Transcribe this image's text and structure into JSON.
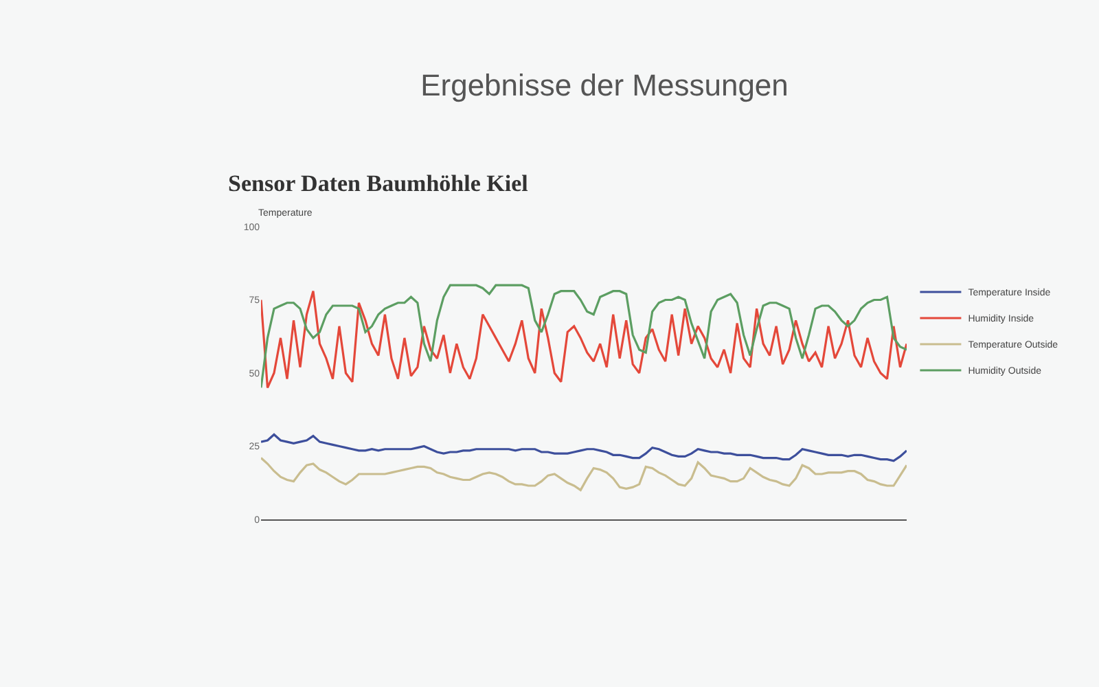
{
  "chart_data": {
    "type": "line",
    "title": "Ergebnisse der Messungen",
    "subtitle": "Sensor Daten Baumhöhle Kiel",
    "ylabel": "Temperature",
    "categories": [
      null,
      null,
      null,
      null,
      null,
      null,
      null,
      null,
      null,
      null,
      null,
      null,
      null,
      null,
      null,
      null,
      null,
      null,
      null,
      null,
      null,
      null,
      null,
      null,
      null,
      null,
      null,
      null,
      null,
      null,
      null,
      null,
      null,
      null,
      null,
      null,
      null,
      null,
      null,
      null,
      null,
      null,
      null,
      null,
      null,
      null,
      null,
      null,
      null,
      null,
      null,
      null,
      null,
      null,
      null,
      null,
      null,
      null,
      null,
      null,
      null,
      null,
      null,
      null,
      null,
      null,
      null,
      null,
      null,
      null,
      null,
      null,
      null,
      null,
      null,
      null,
      null,
      null,
      null,
      null,
      null,
      null,
      null,
      null,
      null,
      null,
      null,
      null,
      null,
      null,
      null,
      null,
      null,
      null,
      null,
      null,
      null,
      null,
      null,
      null
    ],
    "series": [
      {
        "name": "Temperature Inside",
        "color": "#3d4f9c",
        "values": [
          26.5,
          27,
          29,
          27,
          26.5,
          26,
          26.5,
          27,
          28.5,
          26.5,
          26,
          25.5,
          25,
          24.5,
          24,
          23.5,
          23.5,
          24,
          23.5,
          24,
          24,
          24,
          24,
          24,
          24.5,
          25,
          24,
          23,
          22.5,
          23,
          23,
          23.5,
          23.5,
          24,
          24,
          24,
          24,
          24,
          24,
          23.5,
          24,
          24,
          24,
          23,
          23,
          22.5,
          22.5,
          22.5,
          23,
          23.5,
          24,
          24,
          23.5,
          23,
          22,
          22,
          21.5,
          21,
          21,
          22.5,
          24.5,
          24,
          23,
          22,
          21.5,
          21.5,
          22.5,
          24,
          23.5,
          23,
          23,
          22.5,
          22.5,
          22,
          22,
          22,
          21.5,
          21,
          21,
          21,
          20.5,
          20.5,
          22,
          24,
          23.5,
          23,
          22.5,
          22,
          22,
          22,
          21.5,
          22,
          22,
          21.5,
          21,
          20.5,
          20.5,
          20,
          21.5,
          23.5
        ]
      },
      {
        "name": "Humidity Inside",
        "color": "#e4483a",
        "values": [
          75,
          45,
          50,
          62,
          48,
          68,
          52,
          70,
          78,
          60,
          55,
          48,
          66,
          50,
          47,
          74,
          68,
          60,
          56,
          70,
          55,
          48,
          62,
          49,
          52,
          66,
          58,
          55,
          63,
          50,
          60,
          52,
          48,
          55,
          70,
          66,
          62,
          58,
          54,
          60,
          68,
          55,
          50,
          72,
          62,
          50,
          47,
          64,
          66,
          62,
          57,
          54,
          60,
          52,
          70,
          55,
          68,
          53,
          50,
          62,
          65,
          58,
          54,
          70,
          56,
          72,
          60,
          66,
          62,
          55,
          52,
          58,
          50,
          67,
          55,
          52,
          72,
          60,
          56,
          66,
          53,
          58,
          68,
          60,
          54,
          57,
          52,
          66,
          55,
          60,
          68,
          56,
          52,
          62,
          54,
          50,
          48,
          66,
          52,
          60
        ]
      },
      {
        "name": "Temperature Outside",
        "color": "#c9bd8f",
        "values": [
          21,
          19,
          16.5,
          14.5,
          13.5,
          13,
          16,
          18.5,
          19,
          17,
          16,
          14.5,
          13,
          12,
          13.5,
          15.5,
          15.5,
          15.5,
          15.5,
          15.5,
          16,
          16.5,
          17,
          17.5,
          18,
          18,
          17.5,
          16,
          15.5,
          14.5,
          14,
          13.5,
          13.5,
          14.5,
          15.5,
          16,
          15.5,
          14.5,
          13,
          12,
          12,
          11.5,
          11.5,
          13,
          15,
          15.5,
          14,
          12.5,
          11.5,
          10,
          14,
          17.5,
          17,
          16,
          14,
          11,
          10.5,
          11,
          12,
          18,
          17.5,
          16,
          15,
          13.5,
          12,
          11.5,
          14,
          19.5,
          17.5,
          15,
          14.5,
          14,
          13,
          13,
          14,
          17.5,
          16,
          14.5,
          13.5,
          13,
          12,
          11.5,
          14,
          18.5,
          17.5,
          15.5,
          15.5,
          16,
          16,
          16,
          16.5,
          16.5,
          15.5,
          13.5,
          13,
          12,
          11.5,
          11.5,
          15,
          18.5
        ]
      },
      {
        "name": "Humidity Outside",
        "color": "#5c9e62",
        "values": [
          45,
          62,
          72,
          73,
          74,
          74,
          72,
          65,
          62,
          64,
          70,
          73,
          73,
          73,
          73,
          72,
          64,
          66,
          70,
          72,
          73,
          74,
          74,
          76,
          74,
          60,
          54,
          68,
          76,
          80,
          80,
          80,
          80,
          80,
          79,
          77,
          80,
          80,
          80,
          80,
          80,
          79,
          68,
          64,
          70,
          77,
          78,
          78,
          78,
          75,
          71,
          70,
          76,
          77,
          78,
          78,
          77,
          63,
          58,
          57,
          71,
          74,
          75,
          75,
          76,
          75,
          67,
          61,
          55,
          71,
          75,
          76,
          77,
          74,
          63,
          56,
          65,
          73,
          74,
          74,
          73,
          72,
          62,
          55,
          63,
          72,
          73,
          73,
          71,
          68,
          66,
          68,
          72,
          74,
          75,
          75,
          76,
          62,
          59,
          58
        ]
      }
    ],
    "ylim": [
      0,
      100
    ],
    "yticks": [
      0,
      25,
      50,
      75,
      100
    ],
    "grid": false,
    "legend": "right"
  }
}
